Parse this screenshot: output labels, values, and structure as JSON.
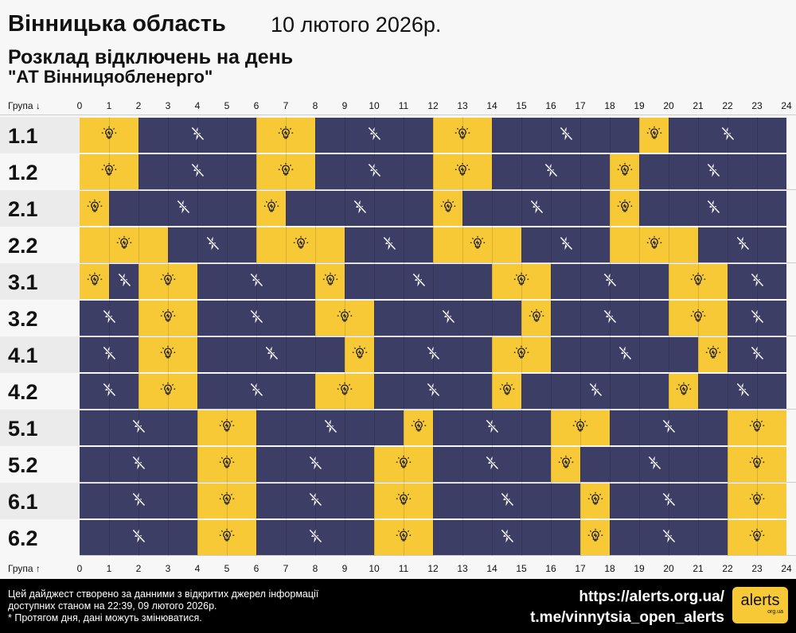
{
  "header": {
    "region": "Вінницька область",
    "date": "10 лютого 2026р.",
    "subtitle": "Розклад відключень на день",
    "company": "\"АТ Вінницяобленерго\""
  },
  "axis": {
    "top_label": "Група ↓",
    "bottom_label": "Група ↑",
    "hours": [
      "0",
      "1",
      "2",
      "3",
      "4",
      "5",
      "6",
      "7",
      "8",
      "9",
      "10",
      "11",
      "12",
      "13",
      "14",
      "15",
      "16",
      "17",
      "18",
      "19",
      "20",
      "21",
      "22",
      "23",
      "24"
    ]
  },
  "colors": {
    "power_on": "#f8c936",
    "power_off": "#3d3e65"
  },
  "icons": {
    "power_on": "lightbulb-icon",
    "power_off": "no-power-icon"
  },
  "groups": [
    {
      "name": "1.1",
      "segments": [
        [
          "on",
          0,
          2
        ],
        [
          "off",
          2,
          6
        ],
        [
          "on",
          6,
          8
        ],
        [
          "off",
          8,
          12
        ],
        [
          "on",
          12,
          14
        ],
        [
          "off",
          14,
          19
        ],
        [
          "on",
          19,
          20
        ],
        [
          "off",
          20,
          24
        ]
      ]
    },
    {
      "name": "1.2",
      "segments": [
        [
          "on",
          0,
          2
        ],
        [
          "off",
          2,
          6
        ],
        [
          "on",
          6,
          8
        ],
        [
          "off",
          8,
          12
        ],
        [
          "on",
          12,
          14
        ],
        [
          "off",
          14,
          18
        ],
        [
          "on",
          18,
          19
        ],
        [
          "off",
          19,
          24
        ]
      ]
    },
    {
      "name": "2.1",
      "segments": [
        [
          "on",
          0,
          1
        ],
        [
          "off",
          1,
          6
        ],
        [
          "on",
          6,
          7
        ],
        [
          "off",
          7,
          12
        ],
        [
          "on",
          12,
          13
        ],
        [
          "off",
          13,
          18
        ],
        [
          "on",
          18,
          19
        ],
        [
          "off",
          19,
          24
        ]
      ]
    },
    {
      "name": "2.2",
      "segments": [
        [
          "on",
          0,
          3
        ],
        [
          "off",
          3,
          6
        ],
        [
          "on",
          6,
          9
        ],
        [
          "off",
          9,
          12
        ],
        [
          "on",
          12,
          15
        ],
        [
          "off",
          15,
          18
        ],
        [
          "on",
          18,
          21
        ],
        [
          "off",
          21,
          24
        ]
      ]
    },
    {
      "name": "3.1",
      "segments": [
        [
          "on",
          0,
          1
        ],
        [
          "off",
          1,
          2
        ],
        [
          "on",
          2,
          4
        ],
        [
          "off",
          4,
          8
        ],
        [
          "on",
          8,
          9
        ],
        [
          "off",
          9,
          14
        ],
        [
          "on",
          14,
          16
        ],
        [
          "off",
          16,
          20
        ],
        [
          "on",
          20,
          22
        ],
        [
          "off",
          22,
          24
        ]
      ]
    },
    {
      "name": "3.2",
      "segments": [
        [
          "off",
          0,
          2
        ],
        [
          "on",
          2,
          4
        ],
        [
          "off",
          4,
          8
        ],
        [
          "on",
          8,
          10
        ],
        [
          "off",
          10,
          15
        ],
        [
          "on",
          15,
          16
        ],
        [
          "off",
          16,
          20
        ],
        [
          "on",
          20,
          22
        ],
        [
          "off",
          22,
          24
        ]
      ]
    },
    {
      "name": "4.1",
      "segments": [
        [
          "off",
          0,
          2
        ],
        [
          "on",
          2,
          4
        ],
        [
          "off",
          4,
          9
        ],
        [
          "on",
          9,
          10
        ],
        [
          "off",
          10,
          14
        ],
        [
          "on",
          14,
          16
        ],
        [
          "off",
          16,
          21
        ],
        [
          "on",
          21,
          22
        ],
        [
          "off",
          22,
          24
        ]
      ]
    },
    {
      "name": "4.2",
      "segments": [
        [
          "off",
          0,
          2
        ],
        [
          "on",
          2,
          4
        ],
        [
          "off",
          4,
          8
        ],
        [
          "on",
          8,
          10
        ],
        [
          "off",
          10,
          14
        ],
        [
          "on",
          14,
          15
        ],
        [
          "off",
          15,
          20
        ],
        [
          "on",
          20,
          21
        ],
        [
          "off",
          21,
          24
        ]
      ]
    },
    {
      "name": "5.1",
      "segments": [
        [
          "off",
          0,
          4
        ],
        [
          "on",
          4,
          6
        ],
        [
          "off",
          6,
          11
        ],
        [
          "on",
          11,
          12
        ],
        [
          "off",
          12,
          16
        ],
        [
          "on",
          16,
          18
        ],
        [
          "off",
          18,
          22
        ],
        [
          "on",
          22,
          24
        ]
      ]
    },
    {
      "name": "5.2",
      "segments": [
        [
          "off",
          0,
          4
        ],
        [
          "on",
          4,
          6
        ],
        [
          "off",
          6,
          10
        ],
        [
          "on",
          10,
          12
        ],
        [
          "off",
          12,
          16
        ],
        [
          "on",
          16,
          17
        ],
        [
          "off",
          17,
          22
        ],
        [
          "on",
          22,
          24
        ]
      ]
    },
    {
      "name": "6.1",
      "segments": [
        [
          "off",
          0,
          4
        ],
        [
          "on",
          4,
          6
        ],
        [
          "off",
          6,
          10
        ],
        [
          "on",
          10,
          12
        ],
        [
          "off",
          12,
          17
        ],
        [
          "on",
          17,
          18
        ],
        [
          "off",
          18,
          22
        ],
        [
          "on",
          22,
          24
        ]
      ]
    },
    {
      "name": "6.2",
      "segments": [
        [
          "off",
          0,
          4
        ],
        [
          "on",
          4,
          6
        ],
        [
          "off",
          6,
          10
        ],
        [
          "on",
          10,
          12
        ],
        [
          "off",
          12,
          17
        ],
        [
          "on",
          17,
          18
        ],
        [
          "off",
          18,
          22
        ],
        [
          "on",
          22,
          24
        ]
      ]
    }
  ],
  "footer": {
    "note1": "Цей дайджест створено за данними з відкритих джерел інформації",
    "note2": "доступних станом на 22:39, 09 лютого 2026р.",
    "note3": "* Протягом дня, дані можуть змінюватися.",
    "link1": "https://alerts.org.ua/",
    "link2": "t.me/vinnytsia_open_alerts",
    "logo_text": "alerts",
    "logo_sub": "org.ua"
  }
}
